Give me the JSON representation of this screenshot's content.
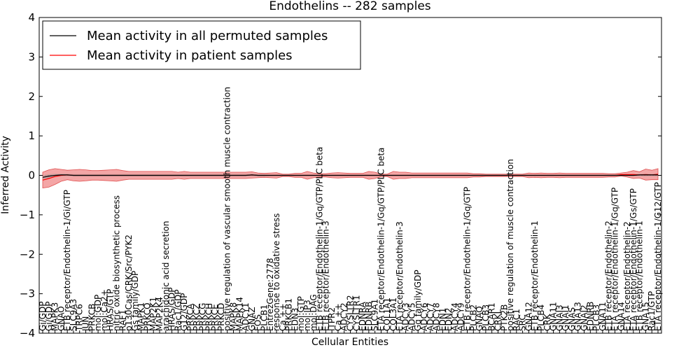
{
  "chart_data": {
    "type": "line",
    "title": "Endothelins -- 282 samples",
    "xlabel": "Cellular Entities",
    "ylabel": "Inferred Activity",
    "ylim": [
      -4,
      4
    ],
    "yticks": [
      "4",
      "3",
      "2",
      "1",
      "0",
      "−1",
      "−2",
      "−3",
      "−4"
    ],
    "yticks_values": [
      4,
      3,
      2,
      1,
      0,
      -1,
      -2,
      -3,
      -4
    ],
    "legend_position": "top-left",
    "grid": false,
    "categories": [
      "Gi/GDP",
      "Gi/GDP",
      "MAPK3",
      "GNAO",
      "ETB receptor/Endothelin-1/Gi/GTP",
      "SLC9A3",
      "TRPC6",
      "JUN",
      "PRKCB",
      "mol:GDP",
      "mol:Ca2+",
      "HRAS/GTP",
      "nitric oxide biosynthetic process",
      "RAF1",
      "p130Cas/CRK/Src/PYK2",
      "Gs family/GDP",
      "MAPK1",
      "PRKCQ",
      "MAP2K1",
      "MAP2K4",
      "arachidonic acid secretion",
      "HRAS/GDP",
      "Rac1/GDP",
      "G12/GDP",
      "PRKCA",
      "PRKCZ",
      "PRKCG",
      "PRKCH",
      "PRKCE",
      "PRKCD",
      "positive regulation of vascular smooth muscle contraction",
      "MAPK8",
      "MAPK14",
      "ADCY1",
      "GNAZ",
      "FOS",
      "PLCB1",
      "EntrezGene:2778",
      "response to oxidative stress",
      "Ca ++",
      "PRKCB1",
      "EDN3",
      "mol:GTP",
      "mol:IP3",
      "mol:DAG",
      "ETB receptor/Endothelin-1/Gq/GTP/PLC beta",
      "ETB receptor/Endothelin-3",
      "ITPR2",
      "Ca ++",
      "ADCY2",
      "CYSLTR2",
      "CYSLTR1",
      "EDNRA",
      "EDNRB",
      "SLC9A1",
      "ETA receptor/Endothelin-1/Gq/GTP/PLC beta",
      "COL1A1",
      "COL3A1",
      "ETA receptor/Endothelin-3",
      "ADCY3",
      "ADCY5",
      "Gq family/GDP",
      "ADCY6",
      "ADCY7",
      "ADCY8",
      "EDN1",
      "EDN2",
      "ADCY4",
      "ADCY9",
      "ETB receptor/Endothelin-1/Gq/GTP",
      "PLCB2",
      "GNAQ",
      "PLCB3",
      "BCAR1",
      "CRKL",
      "PTK2B",
      "positive regulation of muscle contraction",
      "RAC1",
      "SRC",
      "GNA12",
      "ETB receptor/Endothelin-1",
      "PLCB4",
      "CRK",
      "GNA11",
      "GNAI3",
      "GNAI1",
      "GNAS",
      "GNA13",
      "GNAI2",
      "EDNRB",
      "PLCB3",
      "GNA11",
      "ETB receptor/Endothelin-2",
      "ETA receptor/Endothelin-1/Gq/GTP",
      "GNA14",
      "ETA receptor/Endothelin-2",
      "ETA receptor/Endothelin-1/Gs/GTP",
      "ETB receptor/Endothelin-1",
      "GNA15",
      "Rac1/GTP",
      "ETA receptor/Endothelin-1/G12/GTP"
    ],
    "series": [
      {
        "name": "Mean activity in all permuted samples",
        "color": "#000000",
        "values": [
          -0.05,
          -0.02,
          0.0,
          0.01,
          0.01,
          0.0,
          0.0,
          0.0,
          0.0,
          0.0,
          0.0,
          0.0,
          0.0,
          0.0,
          0.0,
          0.0,
          0.0,
          0.0,
          0.0,
          0.0,
          0.0,
          0.0,
          0.0,
          0.0,
          0.0,
          0.0,
          0.0,
          0.0,
          0.0,
          0.0,
          0.0,
          0.0,
          0.0,
          0.0,
          0.01,
          0.0,
          0.0,
          0.0,
          0.0,
          0.0,
          0.0,
          0.0,
          0.0,
          0.0,
          0.0,
          0.0,
          0.0,
          0.0,
          0.0,
          0.0,
          0.0,
          0.0,
          0.0,
          0.0,
          0.0,
          0.0,
          0.0,
          0.0,
          0.0,
          0.0,
          0.0,
          0.0,
          0.0,
          0.0,
          0.0,
          0.0,
          0.0,
          0.0,
          0.0,
          0.0,
          0.0,
          0.0,
          0.0,
          0.0,
          0.0,
          0.0,
          0.0,
          0.0,
          0.0,
          0.0,
          0.0,
          0.0,
          0.0,
          0.0,
          0.0,
          0.0,
          0.0,
          0.0,
          0.0,
          0.0,
          0.0,
          0.0,
          0.0,
          0.0,
          0.0,
          0.0,
          0.0,
          0.01,
          0.01,
          0.01,
          0.01
        ],
        "band": [
          0.05,
          0.05,
          0.04,
          0.03,
          0.03,
          0.03,
          0.03,
          0.03,
          0.03,
          0.03,
          0.03,
          0.03,
          0.03,
          0.03,
          0.03,
          0.03,
          0.03,
          0.03,
          0.03,
          0.03,
          0.03,
          0.03,
          0.03,
          0.03,
          0.03,
          0.03,
          0.03,
          0.03,
          0.03,
          0.03,
          0.03,
          0.03,
          0.03,
          0.03,
          0.03,
          0.03,
          0.03,
          0.02,
          0.02,
          0.02,
          0.02,
          0.02,
          0.02,
          0.02,
          0.02,
          0.02,
          0.02,
          0.02,
          0.02,
          0.02,
          0.02,
          0.02,
          0.02,
          0.02,
          0.02,
          0.02,
          0.02,
          0.02,
          0.02,
          0.02,
          0.02,
          0.02,
          0.02,
          0.02,
          0.02,
          0.02,
          0.02,
          0.02,
          0.02,
          0.02,
          0.02,
          0.02,
          0.02,
          0.02,
          0.02,
          0.02,
          0.02,
          0.02,
          0.02,
          0.02,
          0.02,
          0.02,
          0.02,
          0.02,
          0.02,
          0.02,
          0.02,
          0.02,
          0.02,
          0.02,
          0.02,
          0.02,
          0.02,
          0.02,
          0.02,
          0.02,
          0.02,
          0.03,
          0.03,
          0.03,
          0.03
        ]
      },
      {
        "name": "Mean activity in patient samples",
        "color": "#ff0000",
        "values": [
          -0.12,
          -0.08,
          -0.03,
          0.0,
          0.01,
          0.0,
          0.0,
          0.0,
          0.0,
          0.0,
          0.0,
          0.0,
          0.0,
          0.0,
          0.0,
          0.0,
          0.0,
          0.0,
          0.0,
          0.0,
          0.0,
          0.0,
          0.0,
          0.0,
          0.0,
          0.0,
          0.0,
          0.0,
          0.0,
          0.0,
          0.0,
          0.0,
          0.0,
          0.0,
          0.01,
          0.0,
          0.0,
          0.0,
          0.0,
          0.0,
          0.0,
          0.0,
          0.0,
          0.0,
          0.0,
          0.0,
          0.0,
          0.0,
          0.0,
          0.0,
          0.0,
          0.0,
          0.0,
          0.0,
          0.0,
          0.0,
          0.0,
          0.0,
          0.0,
          0.0,
          0.0,
          0.0,
          0.0,
          0.0,
          0.0,
          0.0,
          0.0,
          0.0,
          0.0,
          0.0,
          0.0,
          0.0,
          0.0,
          0.0,
          0.0,
          0.0,
          0.0,
          0.0,
          0.0,
          0.0,
          0.0,
          0.0,
          0.0,
          0.0,
          0.0,
          0.0,
          0.0,
          0.0,
          0.0,
          0.0,
          0.0,
          0.0,
          0.0,
          0.0,
          0.02,
          0.02,
          0.02,
          0.01,
          0.02,
          0.01,
          0.03
        ],
        "band": [
          0.2,
          0.22,
          0.2,
          0.15,
          0.12,
          0.14,
          0.15,
          0.14,
          0.12,
          0.12,
          0.13,
          0.14,
          0.15,
          0.12,
          0.1,
          0.1,
          0.1,
          0.1,
          0.1,
          0.1,
          0.1,
          0.1,
          0.08,
          0.1,
          0.08,
          0.08,
          0.08,
          0.08,
          0.08,
          0.08,
          0.08,
          0.08,
          0.08,
          0.08,
          0.08,
          0.06,
          0.05,
          0.06,
          0.07,
          0.03,
          0.03,
          0.05,
          0.05,
          0.1,
          0.06,
          0.04,
          0.04,
          0.06,
          0.07,
          0.06,
          0.05,
          0.05,
          0.05,
          0.1,
          0.08,
          0.03,
          0.03,
          0.1,
          0.08,
          0.08,
          0.06,
          0.06,
          0.06,
          0.06,
          0.06,
          0.06,
          0.06,
          0.06,
          0.06,
          0.06,
          0.04,
          0.04,
          0.03,
          0.03,
          0.03,
          0.03,
          0.03,
          0.03,
          0.03,
          0.06,
          0.05,
          0.06,
          0.05,
          0.05,
          0.06,
          0.05,
          0.05,
          0.05,
          0.05,
          0.05,
          0.05,
          0.05,
          0.04,
          0.04,
          0.04,
          0.06,
          0.1,
          0.08,
          0.14,
          0.12,
          0.14
        ]
      }
    ],
    "band_color": "#f08080"
  }
}
